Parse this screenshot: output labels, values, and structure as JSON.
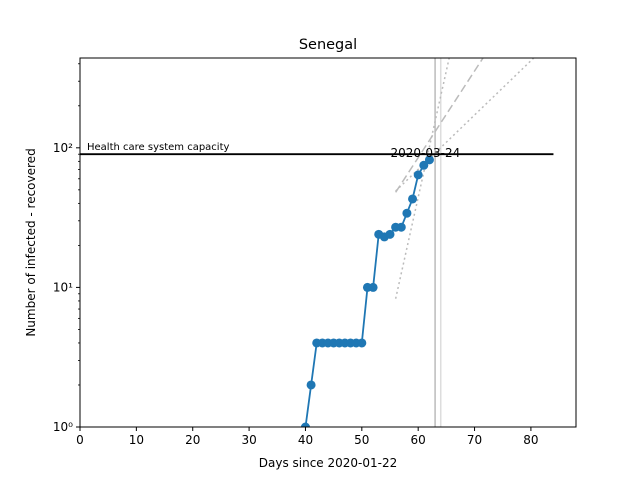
{
  "chart_data": {
    "type": "line",
    "title": "Senegal",
    "xlabel": "Days since 2020-01-22",
    "ylabel": "Number of infected - recovered",
    "xlim": [
      0,
      88
    ],
    "ylim": [
      1,
      440
    ],
    "yscale": "log",
    "grid": false,
    "x_ticks": [
      0,
      10,
      20,
      30,
      40,
      50,
      60,
      70,
      80
    ],
    "x_tick_labels": [
      "0",
      "10",
      "20",
      "30",
      "40",
      "50",
      "60",
      "70",
      "80"
    ],
    "y_ticks": [
      1,
      10,
      100
    ],
    "y_tick_labels": [
      "10⁰",
      "10¹",
      "10²"
    ],
    "series": [
      {
        "color": "#1f77b4",
        "x": [
          40,
          41,
          42,
          43,
          44,
          45,
          46,
          47,
          48,
          49,
          50,
          51,
          52,
          53,
          54,
          55,
          56,
          57,
          58,
          59,
          60,
          61,
          62
        ],
        "y": [
          1,
          2,
          4,
          4,
          4,
          4,
          4,
          4,
          4,
          4,
          4,
          10,
          10,
          24,
          23,
          24,
          27,
          27,
          34,
          43,
          64,
          75,
          82
        ]
      }
    ],
    "fit_lines": [
      {
        "style": "dashed",
        "color": "#bbbbbb",
        "x": [
          56,
          71.5
        ],
        "y": [
          48,
          440
        ]
      },
      {
        "style": "dotted",
        "color": "#bbbbbb",
        "x": [
          56,
          65.5
        ],
        "y": [
          8.3,
          440
        ]
      },
      {
        "style": "dotted",
        "color": "#bbbbbb",
        "x": [
          56,
          80.5
        ],
        "y": [
          49,
          440
        ]
      }
    ],
    "vertical_lines": [
      {
        "x": 63,
        "color": "#bbbbbb"
      },
      {
        "x": 64,
        "color": "#dddddd"
      }
    ],
    "capacity_line": {
      "y": 90,
      "x": [
        0,
        84
      ],
      "label": "Health care system capacity"
    },
    "date_annotation": {
      "text": "2020-03-24",
      "x": 55,
      "y": 90
    }
  }
}
